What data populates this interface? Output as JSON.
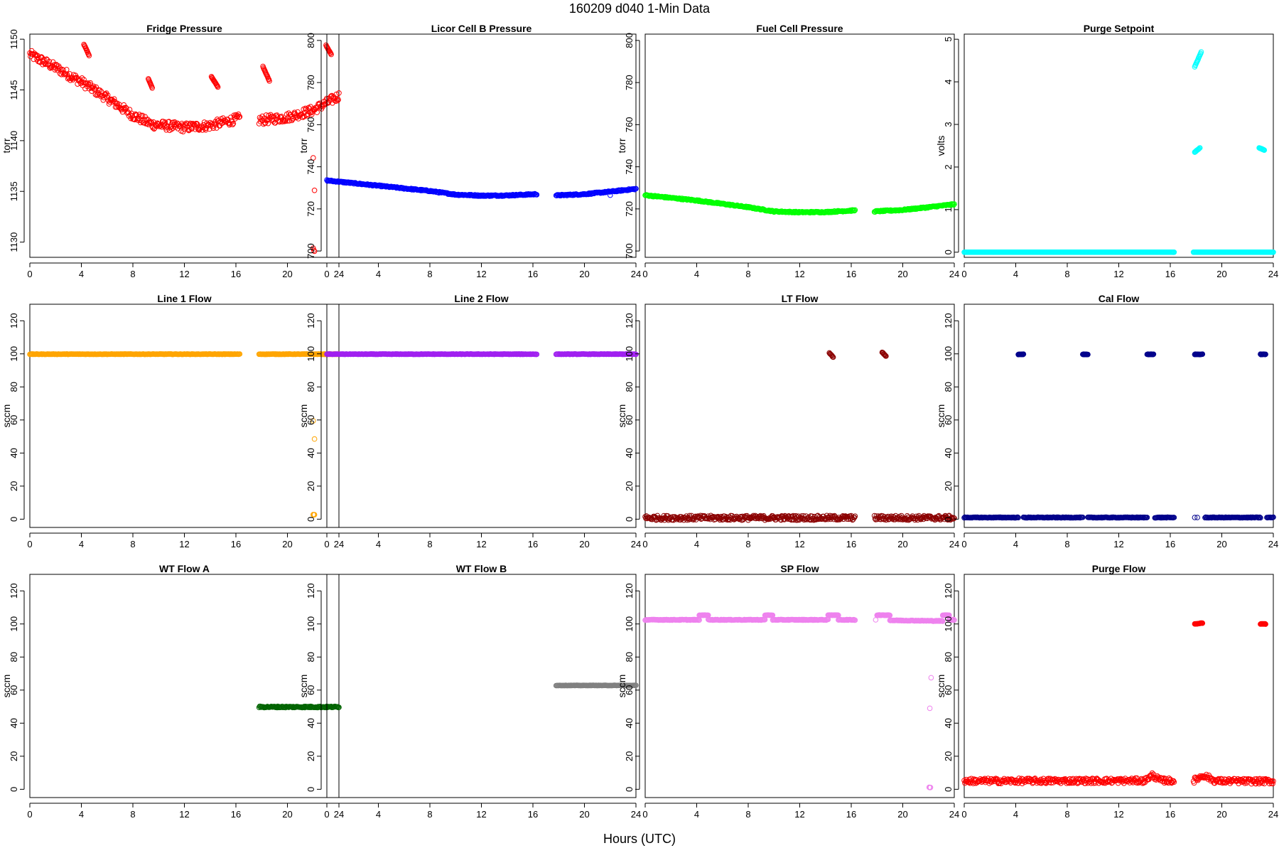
{
  "figure": {
    "title": "160209   d040   1-Min Data",
    "xlabel": "Hours (UTC)"
  },
  "chart_data": [
    {
      "type": "scatter",
      "title": "Fridge Pressure",
      "ylabel": "torr",
      "color": "#ff0000",
      "xlim": [
        0,
        24
      ],
      "ylim": [
        1128.5,
        1150.5
      ],
      "xticks": [
        0,
        4,
        8,
        12,
        16,
        20,
        24
      ],
      "yticks": [
        1130,
        1135,
        1140,
        1145,
        1150
      ],
      "grid": false,
      "segments": [
        {
          "x0": 0,
          "x1": 16.3,
          "knots": [
            [
              0,
              1148.5
            ],
            [
              2,
              1147.2
            ],
            [
              4,
              1145.8
            ],
            [
              6,
              1144.2
            ],
            [
              8,
              1142.5
            ],
            [
              9.5,
              1141.6
            ],
            [
              12,
              1141.3
            ],
            [
              14,
              1141.5
            ],
            [
              16.3,
              1142.2
            ]
          ],
          "jitter": 0.45
        },
        {
          "x0": 17.8,
          "x1": 24,
          "knots": [
            [
              17.8,
              1142
            ],
            [
              20,
              1142.3
            ],
            [
              22,
              1143
            ],
            [
              24,
              1144.4
            ]
          ],
          "jitter": 0.45
        }
      ],
      "clusters": [
        {
          "x0": 4.2,
          "x1": 4.6,
          "y0": 1149.5,
          "y1": 1148.4
        },
        {
          "x0": 9.2,
          "x1": 9.5,
          "y0": 1146.1,
          "y1": 1145.2
        },
        {
          "x0": 14.1,
          "x1": 14.6,
          "y0": 1146.3,
          "y1": 1145.3
        },
        {
          "x0": 18.1,
          "x1": 18.6,
          "y0": 1147.3,
          "y1": 1145.9
        },
        {
          "x0": 23.0,
          "x1": 23.4,
          "y0": 1149.4,
          "y1": 1148.5
        }
      ],
      "outliers": [
        [
          22,
          1138.3
        ],
        [
          22.1,
          1135.1
        ],
        [
          22,
          1129.4
        ],
        [
          22.05,
          1129.2
        ],
        [
          22.1,
          1129.1
        ]
      ]
    },
    {
      "type": "scatter",
      "title": "Licor Cell B Pressure",
      "ylabel": "torr",
      "color": "#0000ff",
      "xlim": [
        0,
        24
      ],
      "ylim": [
        697,
        803
      ],
      "xticks": [
        0,
        4,
        8,
        12,
        16,
        20,
        24
      ],
      "yticks": [
        700,
        720,
        740,
        760,
        780,
        800
      ],
      "grid": false,
      "segments": [
        {
          "x0": 0,
          "x1": 16.3,
          "knots": [
            [
              0,
              733.5
            ],
            [
              4,
              731
            ],
            [
              8,
              728.5
            ],
            [
              10,
              726.8
            ],
            [
              12,
              726.3
            ],
            [
              14,
              726.4
            ],
            [
              16.3,
              727
            ]
          ],
          "jitter": 0.3
        },
        {
          "x0": 17.8,
          "x1": 24,
          "knots": [
            [
              17.8,
              726.4
            ],
            [
              20,
              727
            ],
            [
              22,
              728.2
            ],
            [
              24,
              729.5
            ]
          ],
          "jitter": 0.3
        }
      ],
      "clusters": [],
      "outliers": [
        [
          22,
          726.5
        ]
      ]
    },
    {
      "type": "scatter",
      "title": "Fuel Cell Pressure",
      "ylabel": "torr",
      "color": "#00ff00",
      "xlim": [
        0,
        24
      ],
      "ylim": [
        697,
        803
      ],
      "xticks": [
        0,
        4,
        8,
        12,
        16,
        20,
        24
      ],
      "yticks": [
        700,
        720,
        740,
        760,
        780,
        800
      ],
      "grid": false,
      "segments": [
        {
          "x0": 0,
          "x1": 16.3,
          "knots": [
            [
              0,
              726.5
            ],
            [
              4,
              724
            ],
            [
              8,
              720.8
            ],
            [
              10,
              718.8
            ],
            [
              12,
              718.4
            ],
            [
              14,
              718.5
            ],
            [
              16.3,
              719.3
            ]
          ],
          "jitter": 0.3
        },
        {
          "x0": 17.8,
          "x1": 24,
          "knots": [
            [
              17.8,
              718.8
            ],
            [
              20,
              719.5
            ],
            [
              22,
              720.8
            ],
            [
              24,
              722.2
            ]
          ],
          "jitter": 0.3
        }
      ],
      "clusters": [],
      "outliers": []
    },
    {
      "type": "scatter",
      "title": "Purge Setpoint",
      "ylabel": "volts",
      "color": "#00ffff",
      "xlim": [
        0,
        24
      ],
      "ylim": [
        -0.12,
        5.12
      ],
      "xticks": [
        0,
        4,
        8,
        12,
        16,
        20,
        24
      ],
      "yticks": [
        0,
        1,
        2,
        3,
        4,
        5
      ],
      "grid": false,
      "segments": [
        {
          "x0": 0,
          "x1": 16.3,
          "knots": [
            [
              0,
              0
            ],
            [
              16.3,
              0
            ]
          ],
          "jitter": 0
        },
        {
          "x0": 17.8,
          "x1": 24,
          "knots": [
            [
              17.8,
              0
            ],
            [
              24,
              0
            ]
          ],
          "jitter": 0
        }
      ],
      "clusters": [
        {
          "x0": 17.9,
          "x1": 18.4,
          "y0": 4.35,
          "y1": 4.7
        },
        {
          "x0": 17.9,
          "x1": 18.3,
          "y0": 2.35,
          "y1": 2.45
        },
        {
          "x0": 22.9,
          "x1": 23.3,
          "y0": 2.45,
          "y1": 2.4
        }
      ],
      "outliers": []
    },
    {
      "type": "scatter",
      "title": "Line 1 Flow",
      "ylabel": "sccm",
      "color": "#ffa500",
      "xlim": [
        0,
        24
      ],
      "ylim": [
        -5,
        130
      ],
      "xticks": [
        0,
        4,
        8,
        12,
        16,
        20,
        24
      ],
      "yticks": [
        0,
        20,
        40,
        60,
        80,
        100,
        120
      ],
      "grid": false,
      "segments": [
        {
          "x0": 0,
          "x1": 16.3,
          "knots": [
            [
              0,
              99.8
            ],
            [
              16.3,
              99.8
            ]
          ],
          "jitter": 0.15
        },
        {
          "x0": 17.8,
          "x1": 24,
          "knots": [
            [
              17.8,
              99.8
            ],
            [
              24,
              99.8
            ]
          ],
          "jitter": 0.15
        }
      ],
      "clusters": [],
      "outliers": [
        [
          22,
          59.5
        ],
        [
          22.1,
          48.5
        ],
        [
          22,
          2.8
        ],
        [
          22.05,
          2.6
        ],
        [
          22.1,
          2.7
        ]
      ]
    },
    {
      "type": "scatter",
      "title": "Line 2 Flow",
      "ylabel": "sccm",
      "color": "#a020f0",
      "xlim": [
        0,
        24
      ],
      "ylim": [
        -5,
        130
      ],
      "xticks": [
        0,
        4,
        8,
        12,
        16,
        20,
        24
      ],
      "yticks": [
        0,
        20,
        40,
        60,
        80,
        100,
        120
      ],
      "grid": false,
      "segments": [
        {
          "x0": 0,
          "x1": 16.3,
          "knots": [
            [
              0,
              99.8
            ],
            [
              16.3,
              99.8
            ]
          ],
          "jitter": 0.15
        },
        {
          "x0": 17.8,
          "x1": 24,
          "knots": [
            [
              17.8,
              99.8
            ],
            [
              24,
              99.8
            ]
          ],
          "jitter": 0.15
        }
      ],
      "clusters": [],
      "outliers": []
    },
    {
      "type": "scatter",
      "title": "LT Flow",
      "ylabel": "sccm",
      "color": "#8b0000",
      "xlim": [
        0,
        24
      ],
      "ylim": [
        -5,
        130
      ],
      "xticks": [
        0,
        4,
        8,
        12,
        16,
        20,
        24
      ],
      "yticks": [
        0,
        20,
        40,
        60,
        80,
        100,
        120
      ],
      "grid": false,
      "segments": [
        {
          "x0": 0,
          "x1": 16.3,
          "knots": [
            [
              0,
              0.8
            ],
            [
              16.3,
              0.8
            ]
          ],
          "jitter": 1.4
        },
        {
          "x0": 17.8,
          "x1": 24,
          "knots": [
            [
              17.8,
              0.8
            ],
            [
              24,
              0.8
            ]
          ],
          "jitter": 1.4
        }
      ],
      "clusters": [
        {
          "x0": 14.3,
          "x1": 14.6,
          "y0": 100.5,
          "y1": 98
        },
        {
          "x0": 18.4,
          "x1": 18.7,
          "y0": 101,
          "y1": 98.5
        }
      ],
      "outliers": []
    },
    {
      "type": "scatter",
      "title": "Cal Flow",
      "ylabel": "sccm",
      "color": "#00008b",
      "xlim": [
        0,
        24
      ],
      "ylim": [
        -5,
        130
      ],
      "xticks": [
        0,
        4,
        8,
        12,
        16,
        20,
        24
      ],
      "yticks": [
        0,
        20,
        40,
        60,
        80,
        100,
        120
      ],
      "grid": false,
      "segments": [
        {
          "x0": 0,
          "x1": 4.2,
          "knots": [
            [
              0,
              1
            ],
            [
              4.2,
              1
            ]
          ],
          "jitter": 0.2
        },
        {
          "x0": 4.6,
          "x1": 9.2,
          "knots": [
            [
              4.6,
              1
            ],
            [
              9.2,
              1
            ]
          ],
          "jitter": 0.2
        },
        {
          "x0": 9.6,
          "x1": 14.2,
          "knots": [
            [
              9.6,
              1
            ],
            [
              14.2,
              1
            ]
          ],
          "jitter": 0.2
        },
        {
          "x0": 14.8,
          "x1": 16.3,
          "knots": [
            [
              14.8,
              1
            ],
            [
              16.3,
              1
            ]
          ],
          "jitter": 0.2
        },
        {
          "x0": 18.7,
          "x1": 23,
          "knots": [
            [
              18.7,
              1
            ],
            [
              23,
              1
            ]
          ],
          "jitter": 0.2
        },
        {
          "x0": 23.5,
          "x1": 24,
          "knots": [
            [
              23.5,
              1
            ],
            [
              24,
              1
            ]
          ],
          "jitter": 0.2
        }
      ],
      "clusters": [
        {
          "x0": 4.2,
          "x1": 4.6,
          "y0": 99.7,
          "y1": 99.7
        },
        {
          "x0": 9.2,
          "x1": 9.6,
          "y0": 99.7,
          "y1": 99.7
        },
        {
          "x0": 14.2,
          "x1": 14.7,
          "y0": 99.7,
          "y1": 99.7
        },
        {
          "x0": 17.9,
          "x1": 18.5,
          "y0": 99.7,
          "y1": 99.7
        },
        {
          "x0": 23.0,
          "x1": 23.4,
          "y0": 99.7,
          "y1": 99.7
        }
      ],
      "outliers": [
        [
          17.9,
          1
        ],
        [
          18.1,
          1
        ]
      ]
    },
    {
      "type": "scatter",
      "title": "WT Flow A",
      "ylabel": "sccm",
      "color": "#006400",
      "xlim": [
        0,
        24
      ],
      "ylim": [
        -5,
        130
      ],
      "xticks": [
        0,
        4,
        8,
        12,
        16,
        20,
        24
      ],
      "yticks": [
        0,
        20,
        40,
        60,
        80,
        100,
        120
      ],
      "grid": false,
      "segments": [
        {
          "x0": 17.8,
          "x1": 24,
          "knots": [
            [
              17.8,
              49.8
            ],
            [
              24,
              49.8
            ]
          ],
          "jitter": 0.4
        }
      ],
      "clusters": [],
      "outliers": []
    },
    {
      "type": "scatter",
      "title": "WT Flow B",
      "ylabel": "sccm",
      "color": "#808080",
      "xlim": [
        0,
        24
      ],
      "ylim": [
        -5,
        130
      ],
      "xticks": [
        0,
        4,
        8,
        12,
        16,
        20,
        24
      ],
      "yticks": [
        0,
        20,
        40,
        60,
        80,
        100,
        120
      ],
      "grid": false,
      "segments": [
        {
          "x0": 17.8,
          "x1": 24,
          "knots": [
            [
              17.8,
              62.8
            ],
            [
              24,
              62.8
            ]
          ],
          "jitter": 0.1
        }
      ],
      "clusters": [],
      "outliers": []
    },
    {
      "type": "scatter",
      "title": "SP Flow",
      "ylabel": "sccm",
      "color": "#ee82ee",
      "xlim": [
        0,
        24
      ],
      "ylim": [
        -5,
        130
      ],
      "xticks": [
        0,
        4,
        8,
        12,
        16,
        20,
        24
      ],
      "yticks": [
        0,
        20,
        40,
        60,
        80,
        100,
        120
      ],
      "grid": false,
      "segments": [
        {
          "x0": 0,
          "x1": 4.2,
          "knots": [
            [
              0,
              102.5
            ],
            [
              4.2,
              102.5
            ]
          ],
          "jitter": 0.2
        },
        {
          "x0": 4.9,
          "x1": 9.3,
          "knots": [
            [
              4.9,
              102.5
            ],
            [
              9.3,
              102.5
            ]
          ],
          "jitter": 0.2
        },
        {
          "x0": 9.9,
          "x1": 14.2,
          "knots": [
            [
              9.9,
              102.5
            ],
            [
              14.2,
              102.5
            ]
          ],
          "jitter": 0.2
        },
        {
          "x0": 15.0,
          "x1": 16.3,
          "knots": [
            [
              15.0,
              102.5
            ],
            [
              16.3,
              102.5
            ]
          ],
          "jitter": 0.2
        },
        {
          "x0": 19.0,
          "x1": 23.1,
          "knots": [
            [
              19.0,
              102.2
            ],
            [
              23.1,
              101.8
            ]
          ],
          "jitter": 0.2
        },
        {
          "x0": 23.6,
          "x1": 24,
          "knots": [
            [
              23.6,
              102.5
            ],
            [
              24,
              102.5
            ]
          ],
          "jitter": 0.2
        }
      ],
      "clusters": [
        {
          "x0": 4.2,
          "x1": 4.9,
          "y0": 105.3,
          "y1": 105.3
        },
        {
          "x0": 9.3,
          "x1": 9.9,
          "y0": 105.3,
          "y1": 105.3
        },
        {
          "x0": 14.2,
          "x1": 15.0,
          "y0": 105.3,
          "y1": 105.3
        },
        {
          "x0": 18.0,
          "x1": 19.0,
          "y0": 105.3,
          "y1": 105.3
        },
        {
          "x0": 23.1,
          "x1": 23.6,
          "y0": 105.3,
          "y1": 105.3
        }
      ],
      "outliers": [
        [
          17.9,
          102.5
        ],
        [
          22.2,
          67.5
        ],
        [
          22.1,
          49
        ],
        [
          22.05,
          1.2
        ],
        [
          22.1,
          1.0
        ],
        [
          22.15,
          1.1
        ]
      ]
    },
    {
      "type": "scatter",
      "title": "Purge Flow",
      "ylabel": "sccm",
      "color": "#ff0000",
      "xlim": [
        0,
        24
      ],
      "ylim": [
        -5,
        130
      ],
      "xticks": [
        0,
        4,
        8,
        12,
        16,
        20,
        24
      ],
      "yticks": [
        0,
        20,
        40,
        60,
        80,
        100,
        120
      ],
      "grid": false,
      "segments": [
        {
          "x0": 0,
          "x1": 16.3,
          "knots": [
            [
              0,
              5
            ],
            [
              14,
              5.2
            ],
            [
              14.6,
              8.5
            ],
            [
              15.2,
              5.5
            ],
            [
              16.3,
              5
            ]
          ],
          "jitter": 1.6
        },
        {
          "x0": 17.8,
          "x1": 24,
          "knots": [
            [
              17.8,
              5.2
            ],
            [
              18.6,
              8.5
            ],
            [
              19.5,
              5
            ],
            [
              24,
              4.8
            ]
          ],
          "jitter": 1.6
        }
      ],
      "clusters": [
        {
          "x0": 17.9,
          "x1": 18.5,
          "y0": 100,
          "y1": 100.5
        },
        {
          "x0": 23.0,
          "x1": 23.4,
          "y0": 100,
          "y1": 100
        }
      ],
      "outliers": []
    }
  ]
}
